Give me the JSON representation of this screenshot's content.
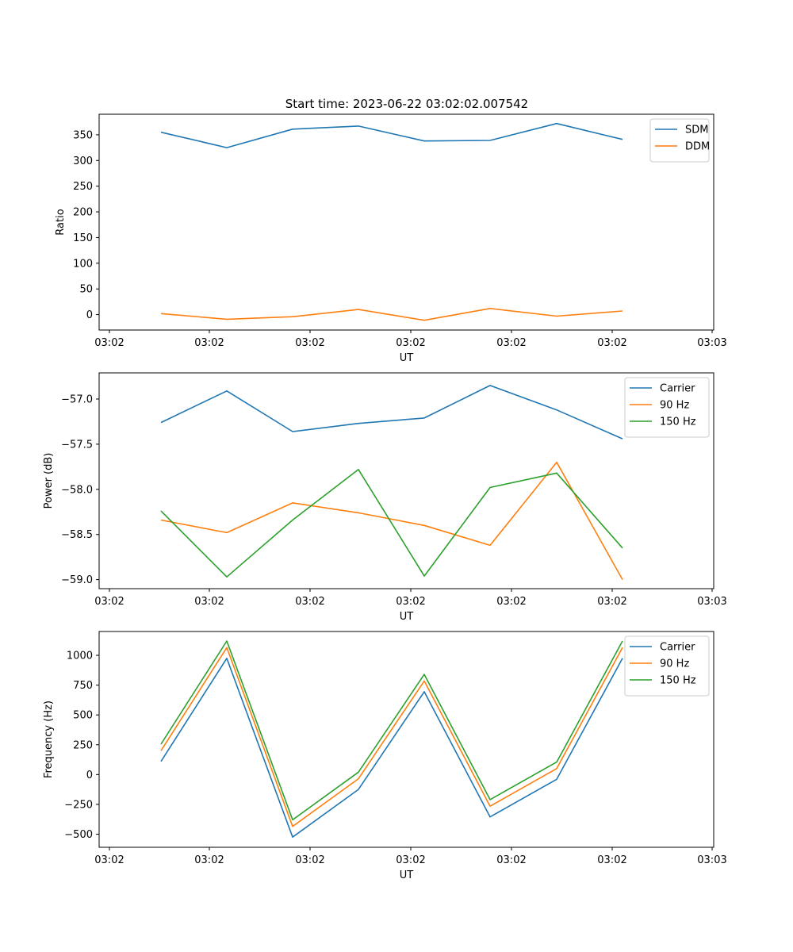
{
  "figure": {
    "title": "Start time: 2023-06-22 03:02:02.007542"
  },
  "chart_data": [
    {
      "type": "line",
      "xlabel": "UT",
      "ylabel": "Ratio",
      "x_tick_labels": [
        "03:02",
        "03:02",
        "03:02",
        "03:02",
        "03:02",
        "03:02",
        "03:03"
      ],
      "y_ticks": [
        0,
        50,
        100,
        150,
        200,
        250,
        300,
        350
      ],
      "y_tick_labels": [
        "0",
        "50",
        "100",
        "150",
        "200",
        "250",
        "300",
        "350"
      ],
      "ylim": [
        -30,
        390
      ],
      "legend_position": "top-right",
      "series": [
        {
          "name": "SDM",
          "color": "#1f77b4",
          "values": [
            355,
            325,
            361,
            367,
            338,
            339,
            372,
            341
          ]
        },
        {
          "name": "DDM",
          "color": "#ff7f0e",
          "values": [
            2,
            -9,
            -4,
            10,
            -11,
            12,
            -3,
            7
          ]
        }
      ]
    },
    {
      "type": "line",
      "xlabel": "UT",
      "ylabel": "Power (dB)",
      "x_tick_labels": [
        "03:02",
        "03:02",
        "03:02",
        "03:02",
        "03:02",
        "03:02",
        "03:03"
      ],
      "y_ticks": [
        -57.0,
        -57.5,
        -58.0,
        -58.5,
        -59.0
      ],
      "y_tick_labels": [
        "−57.0",
        "−57.5",
        "−58.0",
        "−58.5",
        "−59.0"
      ],
      "ylim": [
        -59.1,
        -56.71
      ],
      "legend_position": "top-right",
      "series": [
        {
          "name": "Carrier",
          "color": "#1f77b4",
          "values": [
            -57.26,
            -56.91,
            -57.36,
            -57.27,
            -57.21,
            -56.85,
            -57.12,
            -57.44
          ]
        },
        {
          "name": "90 Hz",
          "color": "#ff7f0e",
          "values": [
            -58.34,
            -58.48,
            -58.15,
            -58.26,
            -58.4,
            -58.62,
            -57.7,
            -59.0
          ]
        },
        {
          "name": "150 Hz",
          "color": "#2ca02c",
          "values": [
            -58.24,
            -58.97,
            -58.34,
            -57.78,
            -58.96,
            -57.98,
            -57.82,
            -58.65
          ]
        }
      ]
    },
    {
      "type": "line",
      "xlabel": "UT",
      "ylabel": "Frequency (Hz)",
      "x_tick_labels": [
        "03:02",
        "03:02",
        "03:02",
        "03:02",
        "03:02",
        "03:02",
        "03:03"
      ],
      "y_ticks": [
        -500,
        -250,
        0,
        250,
        500,
        750,
        1000
      ],
      "y_tick_labels": [
        "−500",
        "−250",
        "0",
        "250",
        "500",
        "750",
        "1000"
      ],
      "ylim": [
        -610,
        1200
      ],
      "legend_position": "top-right",
      "series": [
        {
          "name": "Carrier",
          "color": "#1f77b4",
          "values": [
            110,
            975,
            -525,
            -125,
            695,
            -355,
            -40,
            975
          ]
        },
        {
          "name": "90 Hz",
          "color": "#ff7f0e",
          "values": [
            200,
            1065,
            -435,
            -35,
            785,
            -265,
            50,
            1065
          ]
        },
        {
          "name": "150 Hz",
          "color": "#2ca02c",
          "values": [
            255,
            1120,
            -380,
            20,
            840,
            -210,
            105,
            1120
          ]
        }
      ]
    }
  ]
}
